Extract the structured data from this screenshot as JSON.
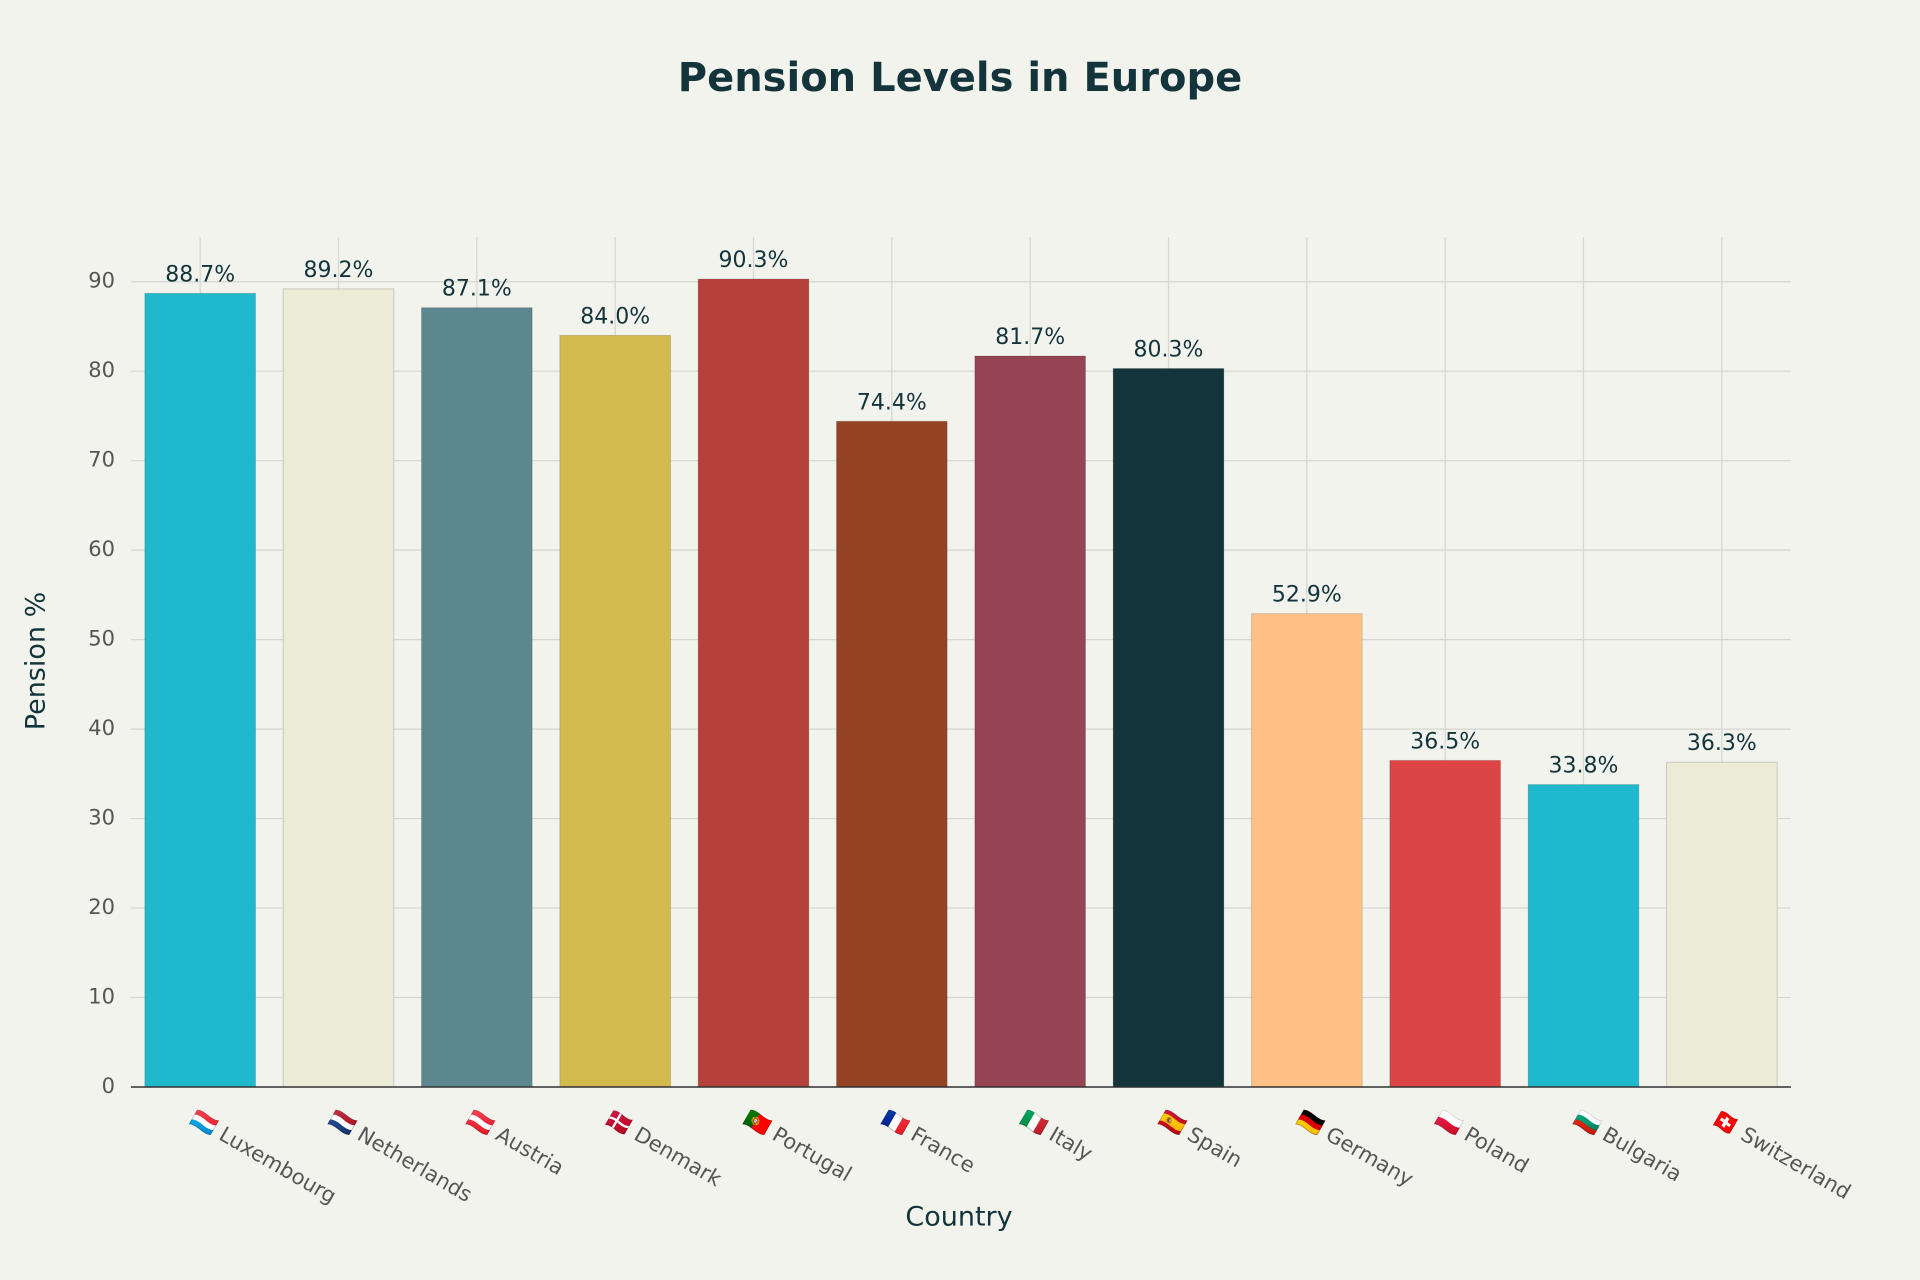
{
  "chart_data": {
    "type": "bar",
    "title": "Pension Levels in Europe",
    "x_label": "Country",
    "y_label": "Pension %",
    "categories": [
      "🇱🇺 Luxembourg",
      "🇳🇱 Netherlands",
      "🇦🇹 Austria",
      "🇩🇰 Denmark",
      "🇵🇹 Portugal",
      "🇫🇷 France",
      "🇮🇹 Italy",
      "🇪🇸 Spain",
      "🇩🇪 Germany",
      "🇵🇱 Poland",
      "🇧🇬 Bulgaria",
      "🇨🇭 Switzerland"
    ],
    "values": [
      88.7,
      89.2,
      87.1,
      84.0,
      90.3,
      74.4,
      81.7,
      80.3,
      52.9,
      36.5,
      33.8,
      36.3
    ],
    "value_labels": [
      "88.7%",
      "89.2%",
      "87.1%",
      "84.0%",
      "90.3%",
      "74.4%",
      "81.7%",
      "80.3%",
      "52.9%",
      "36.5%",
      "33.8%",
      "36.3%"
    ],
    "colors": [
      "#1FB8CD",
      "#ECEBD5",
      "#5D878F",
      "#D2BA4C",
      "#B4413C",
      "#944425",
      "#964354",
      "#13343B",
      "#FFC185",
      "#DB4545",
      "#1FB8CD",
      "#ECEBD5"
    ],
    "ylim": [
      0,
      95
    ],
    "yticks": [
      0,
      10,
      20,
      30,
      40,
      50,
      60,
      70,
      80,
      90
    ],
    "grid": true
  }
}
